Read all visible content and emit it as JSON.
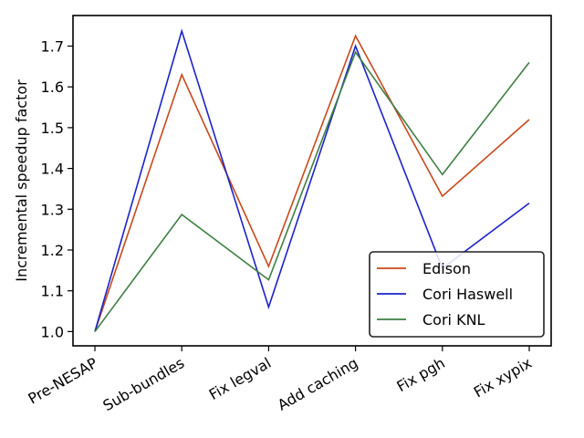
{
  "chart_data": {
    "type": "line",
    "categories": [
      "Pre-NESAP",
      "Sub-bundles",
      "Fix legval",
      "Add caching",
      "Fix pgh",
      "Fix xypix"
    ],
    "series": [
      {
        "name": "Edison",
        "color": "#c9481c",
        "values": [
          1.0,
          1.63,
          1.16,
          1.725,
          1.332,
          1.52
        ]
      },
      {
        "name": "Cori Haswell",
        "color": "#1c23c9",
        "values": [
          1.0,
          1.737,
          1.06,
          1.7,
          1.155,
          1.315
        ]
      },
      {
        "name": "Cori KNL",
        "color": "#3e7f44",
        "values": [
          1.0,
          1.287,
          1.127,
          1.685,
          1.385,
          1.66
        ]
      }
    ],
    "title": "",
    "xlabel": "",
    "ylabel": "Incremental speedup factor",
    "ylim": [
      0.965,
      1.775
    ],
    "yticks": [
      "1.0",
      "1.1",
      "1.2",
      "1.3",
      "1.4",
      "1.5",
      "1.6",
      "1.7"
    ],
    "grid": false,
    "legend_position": "lower-right"
  }
}
